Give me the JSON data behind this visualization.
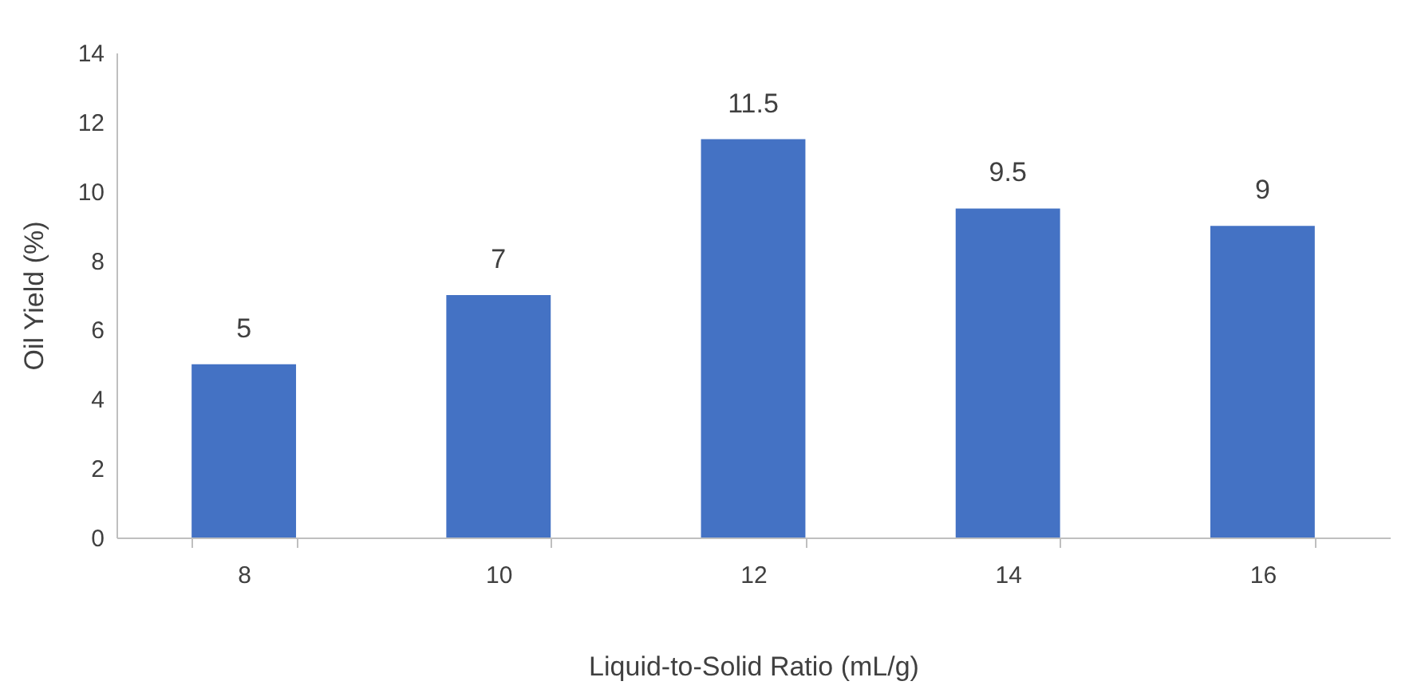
{
  "chart_data": {
    "type": "bar",
    "xlabel": "Liquid-to-Solid Ratio (mL/g)",
    "ylabel": "Oil Yield (%)",
    "categories": [
      "8",
      "10",
      "12",
      "14",
      "16"
    ],
    "series": [
      {
        "color": "#4472c4",
        "values": [
          5,
          7,
          11.5,
          9.5,
          9
        ]
      }
    ],
    "ylim": [
      0,
      14
    ],
    "yticks": [
      0,
      2,
      4,
      6,
      8,
      10,
      12,
      14
    ],
    "data_labels": true
  }
}
